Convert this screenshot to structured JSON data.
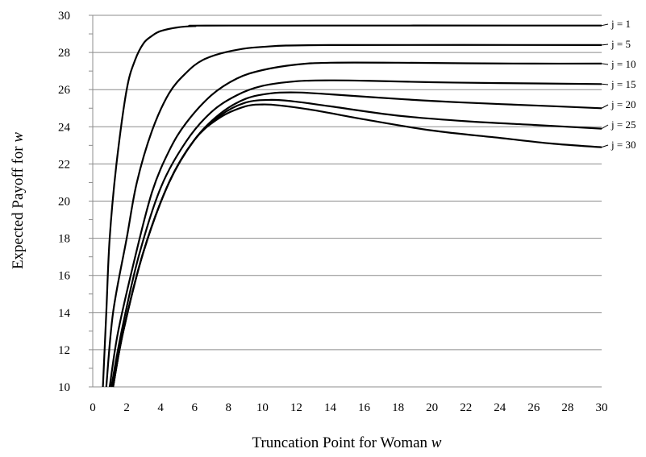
{
  "chart_data": {
    "type": "line",
    "xlabel_text": "Truncation Point for Woman",
    "xlabel_var": "w",
    "ylabel_text": "Expected Payoff for",
    "ylabel_var": "w",
    "xlim": [
      0,
      30
    ],
    "ylim": [
      10,
      30
    ],
    "x_ticks": [
      "0",
      "2",
      "4",
      "6",
      "8",
      "10",
      "12",
      "14",
      "16",
      "18",
      "20",
      "22",
      "24",
      "26",
      "28",
      "30"
    ],
    "y_ticks": [
      "10",
      "12",
      "14",
      "16",
      "18",
      "20",
      "22",
      "24",
      "26",
      "28",
      "30"
    ],
    "grid": "horizontal",
    "series": [
      {
        "name": "j = 1",
        "points": [
          [
            0.6,
            10
          ],
          [
            0.8,
            14
          ],
          [
            1,
            18
          ],
          [
            1.4,
            22
          ],
          [
            2,
            26
          ],
          [
            2.5,
            27.6
          ],
          [
            3,
            28.5
          ],
          [
            3.5,
            28.9
          ],
          [
            4,
            29.15
          ],
          [
            5,
            29.35
          ],
          [
            6,
            29.42
          ],
          [
            8,
            29.45
          ],
          [
            30,
            29.45
          ]
        ]
      },
      {
        "name": "j = 5",
        "points": [
          [
            0.8,
            10
          ],
          [
            1.2,
            14
          ],
          [
            2,
            18
          ],
          [
            2.6,
            21
          ],
          [
            3.5,
            23.8
          ],
          [
            4.5,
            25.8
          ],
          [
            5.5,
            26.9
          ],
          [
            6.5,
            27.6
          ],
          [
            8,
            28.05
          ],
          [
            10,
            28.3
          ],
          [
            14,
            28.4
          ],
          [
            30,
            28.4
          ]
        ]
      },
      {
        "name": "j = 10",
        "points": [
          [
            1.0,
            10
          ],
          [
            1.5,
            13
          ],
          [
            2.5,
            17
          ],
          [
            3.5,
            20.5
          ],
          [
            4.5,
            22.7
          ],
          [
            5.5,
            24.2
          ],
          [
            7,
            25.7
          ],
          [
            8.5,
            26.6
          ],
          [
            10,
            27.05
          ],
          [
            12,
            27.35
          ],
          [
            14,
            27.45
          ],
          [
            18,
            27.45
          ],
          [
            22,
            27.42
          ],
          [
            26,
            27.4
          ],
          [
            30,
            27.4
          ]
        ]
      },
      {
        "name": "j = 15",
        "points": [
          [
            1.1,
            10
          ],
          [
            1.7,
            13
          ],
          [
            2.7,
            17
          ],
          [
            4,
            20.7
          ],
          [
            5.5,
            23.2
          ],
          [
            7,
            24.8
          ],
          [
            8.5,
            25.7
          ],
          [
            10,
            26.2
          ],
          [
            12,
            26.45
          ],
          [
            14,
            26.5
          ],
          [
            16,
            26.48
          ],
          [
            20,
            26.4
          ],
          [
            24,
            26.35
          ],
          [
            30,
            26.3
          ]
        ]
      },
      {
        "name": "j = 20",
        "points": [
          [
            1.2,
            10
          ],
          [
            1.8,
            13
          ],
          [
            3,
            17.3
          ],
          [
            4.5,
            21
          ],
          [
            6,
            23.3
          ],
          [
            7.5,
            24.7
          ],
          [
            9,
            25.5
          ],
          [
            10.5,
            25.8
          ],
          [
            12,
            25.85
          ],
          [
            14,
            25.75
          ],
          [
            18,
            25.5
          ],
          [
            22,
            25.3
          ],
          [
            26,
            25.15
          ],
          [
            30,
            25.0
          ]
        ]
      },
      {
        "name": "j = 25",
        "points": [
          [
            1.2,
            10
          ],
          [
            1.8,
            13
          ],
          [
            3,
            17.3
          ],
          [
            4.5,
            21
          ],
          [
            6,
            23.3
          ],
          [
            7.5,
            24.6
          ],
          [
            9,
            25.3
          ],
          [
            10.5,
            25.45
          ],
          [
            12,
            25.35
          ],
          [
            14,
            25.1
          ],
          [
            18,
            24.6
          ],
          [
            22,
            24.3
          ],
          [
            26,
            24.1
          ],
          [
            30,
            23.9
          ]
        ]
      },
      {
        "name": "j = 30",
        "points": [
          [
            1.2,
            10
          ],
          [
            1.8,
            13
          ],
          [
            3,
            17.3
          ],
          [
            4.5,
            21
          ],
          [
            6,
            23.3
          ],
          [
            7.5,
            24.5
          ],
          [
            9,
            25.1
          ],
          [
            10,
            25.2
          ],
          [
            11,
            25.15
          ],
          [
            13,
            24.9
          ],
          [
            16,
            24.4
          ],
          [
            20,
            23.8
          ],
          [
            24,
            23.4
          ],
          [
            27,
            23.1
          ],
          [
            30,
            22.9
          ]
        ]
      }
    ]
  }
}
